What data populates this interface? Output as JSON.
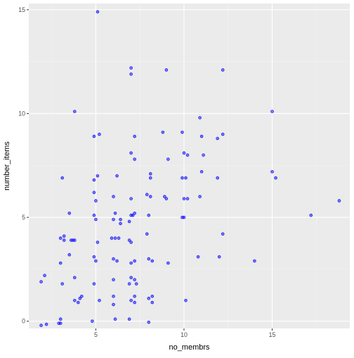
{
  "chart_data": {
    "type": "scatter",
    "title": "",
    "xlabel": "no_membrs",
    "ylabel": "number_items",
    "xlim": [
      1.2,
      19.4
    ],
    "ylim": [
      -0.35,
      15.3
    ],
    "x_ticks": [
      5,
      10,
      15
    ],
    "x_tick_labels": [
      "5",
      "10",
      "15"
    ],
    "y_ticks": [
      0,
      5,
      10,
      15
    ],
    "y_tick_labels": [
      "0",
      "5",
      "10",
      "15"
    ],
    "grid": true,
    "legend": "none",
    "colors": {
      "point": "#0000ff",
      "panel_background": "#ebebeb",
      "grid_major": "#ffffff",
      "grid_minor": "#f5f5f5"
    },
    "points": [
      {
        "x": 5.1,
        "y": 14.9
      },
      {
        "x": 7.0,
        "y": 12.2
      },
      {
        "x": 7.0,
        "y": 11.9
      },
      {
        "x": 9.0,
        "y": 12.1
      },
      {
        "x": 12.2,
        "y": 12.1
      },
      {
        "x": 3.8,
        "y": 10.1
      },
      {
        "x": 15.0,
        "y": 10.1
      },
      {
        "x": 10.9,
        "y": 9.8
      },
      {
        "x": 5.2,
        "y": 9.0
      },
      {
        "x": 4.9,
        "y": 8.9
      },
      {
        "x": 7.2,
        "y": 8.9
      },
      {
        "x": 8.8,
        "y": 9.1
      },
      {
        "x": 9.9,
        "y": 9.1
      },
      {
        "x": 11.0,
        "y": 8.9
      },
      {
        "x": 12.2,
        "y": 9.0
      },
      {
        "x": 11.9,
        "y": 8.8
      },
      {
        "x": 7.0,
        "y": 8.1
      },
      {
        "x": 7.2,
        "y": 7.8
      },
      {
        "x": 9.1,
        "y": 7.8
      },
      {
        "x": 10.0,
        "y": 8.1
      },
      {
        "x": 10.2,
        "y": 8.0
      },
      {
        "x": 11.1,
        "y": 8.0
      },
      {
        "x": 5.1,
        "y": 7.0
      },
      {
        "x": 4.9,
        "y": 6.8
      },
      {
        "x": 3.1,
        "y": 6.9
      },
      {
        "x": 6.2,
        "y": 7.0
      },
      {
        "x": 8.1,
        "y": 7.1
      },
      {
        "x": 8.1,
        "y": 6.9
      },
      {
        "x": 9.9,
        "y": 6.9
      },
      {
        "x": 10.1,
        "y": 6.9
      },
      {
        "x": 11.0,
        "y": 7.2
      },
      {
        "x": 11.9,
        "y": 6.9
      },
      {
        "x": 15.0,
        "y": 7.2
      },
      {
        "x": 15.2,
        "y": 6.9
      },
      {
        "x": 4.9,
        "y": 6.2
      },
      {
        "x": 6.0,
        "y": 6.0
      },
      {
        "x": 7.9,
        "y": 6.1
      },
      {
        "x": 8.1,
        "y": 6.0
      },
      {
        "x": 8.9,
        "y": 6.0
      },
      {
        "x": 9.0,
        "y": 5.9
      },
      {
        "x": 10.0,
        "y": 5.9
      },
      {
        "x": 10.2,
        "y": 5.9
      },
      {
        "x": 10.9,
        "y": 6.0
      },
      {
        "x": 7.0,
        "y": 5.9
      },
      {
        "x": 5.0,
        "y": 5.8
      },
      {
        "x": 18.8,
        "y": 5.8
      },
      {
        "x": 3.5,
        "y": 5.2
      },
      {
        "x": 4.9,
        "y": 5.1
      },
      {
        "x": 5.0,
        "y": 4.9
      },
      {
        "x": 6.1,
        "y": 5.2
      },
      {
        "x": 6.0,
        "y": 4.9
      },
      {
        "x": 6.4,
        "y": 4.9
      },
      {
        "x": 6.4,
        "y": 4.7
      },
      {
        "x": 6.9,
        "y": 4.8
      },
      {
        "x": 7.1,
        "y": 5.1
      },
      {
        "x": 7.2,
        "y": 5.2
      },
      {
        "x": 7.0,
        "y": 5.1
      },
      {
        "x": 8.0,
        "y": 5.1
      },
      {
        "x": 9.9,
        "y": 5.0
      },
      {
        "x": 10.0,
        "y": 5.0
      },
      {
        "x": 17.2,
        "y": 5.1
      },
      {
        "x": 3.0,
        "y": 4.0
      },
      {
        "x": 3.2,
        "y": 4.1
      },
      {
        "x": 3.6,
        "y": 3.9
      },
      {
        "x": 3.7,
        "y": 3.9
      },
      {
        "x": 3.8,
        "y": 3.9
      },
      {
        "x": 3.2,
        "y": 3.9
      },
      {
        "x": 5.1,
        "y": 3.8
      },
      {
        "x": 5.9,
        "y": 4.0
      },
      {
        "x": 6.1,
        "y": 4.0
      },
      {
        "x": 6.3,
        "y": 4.0
      },
      {
        "x": 6.9,
        "y": 3.9
      },
      {
        "x": 7.0,
        "y": 3.8
      },
      {
        "x": 7.9,
        "y": 4.2
      },
      {
        "x": 12.2,
        "y": 4.2
      },
      {
        "x": 3.5,
        "y": 3.2
      },
      {
        "x": 4.9,
        "y": 3.1
      },
      {
        "x": 5.0,
        "y": 2.9
      },
      {
        "x": 6.0,
        "y": 3.0
      },
      {
        "x": 3.0,
        "y": 2.8
      },
      {
        "x": 6.2,
        "y": 2.9
      },
      {
        "x": 7.0,
        "y": 2.8
      },
      {
        "x": 7.2,
        "y": 2.9
      },
      {
        "x": 8.0,
        "y": 3.0
      },
      {
        "x": 8.2,
        "y": 2.9
      },
      {
        "x": 9.1,
        "y": 2.8
      },
      {
        "x": 10.8,
        "y": 3.1
      },
      {
        "x": 12.0,
        "y": 3.1
      },
      {
        "x": 14.0,
        "y": 2.9
      },
      {
        "x": 2.1,
        "y": 2.2
      },
      {
        "x": 1.9,
        "y": 1.9
      },
      {
        "x": 3.8,
        "y": 2.1
      },
      {
        "x": 3.1,
        "y": 1.8
      },
      {
        "x": 4.9,
        "y": 1.8
      },
      {
        "x": 6.0,
        "y": 2.0
      },
      {
        "x": 7.0,
        "y": 2.1
      },
      {
        "x": 7.2,
        "y": 2.0
      },
      {
        "x": 6.9,
        "y": 1.8
      },
      {
        "x": 7.3,
        "y": 1.8
      },
      {
        "x": 3.8,
        "y": 1.0
      },
      {
        "x": 4.0,
        "y": 0.9
      },
      {
        "x": 4.2,
        "y": 1.2
      },
      {
        "x": 4.1,
        "y": 1.1
      },
      {
        "x": 5.2,
        "y": 1.0
      },
      {
        "x": 6.0,
        "y": 1.2
      },
      {
        "x": 6.0,
        "y": 0.8
      },
      {
        "x": 7.0,
        "y": 1.0
      },
      {
        "x": 7.2,
        "y": 1.2
      },
      {
        "x": 7.2,
        "y": 0.9
      },
      {
        "x": 8.0,
        "y": 1.1
      },
      {
        "x": 8.2,
        "y": 1.2
      },
      {
        "x": 8.2,
        "y": 0.9
      },
      {
        "x": 10.1,
        "y": 1.0
      },
      {
        "x": 3.0,
        "y": 0.1
      },
      {
        "x": 3.0,
        "y": -0.1
      },
      {
        "x": 2.9,
        "y": -0.1
      },
      {
        "x": 1.9,
        "y": -0.2
      },
      {
        "x": 2.2,
        "y": -0.15
      },
      {
        "x": 4.8,
        "y": 0.0
      },
      {
        "x": 6.1,
        "y": 0.1
      },
      {
        "x": 6.9,
        "y": 0.1
      },
      {
        "x": 8.0,
        "y": -0.05
      }
    ]
  }
}
